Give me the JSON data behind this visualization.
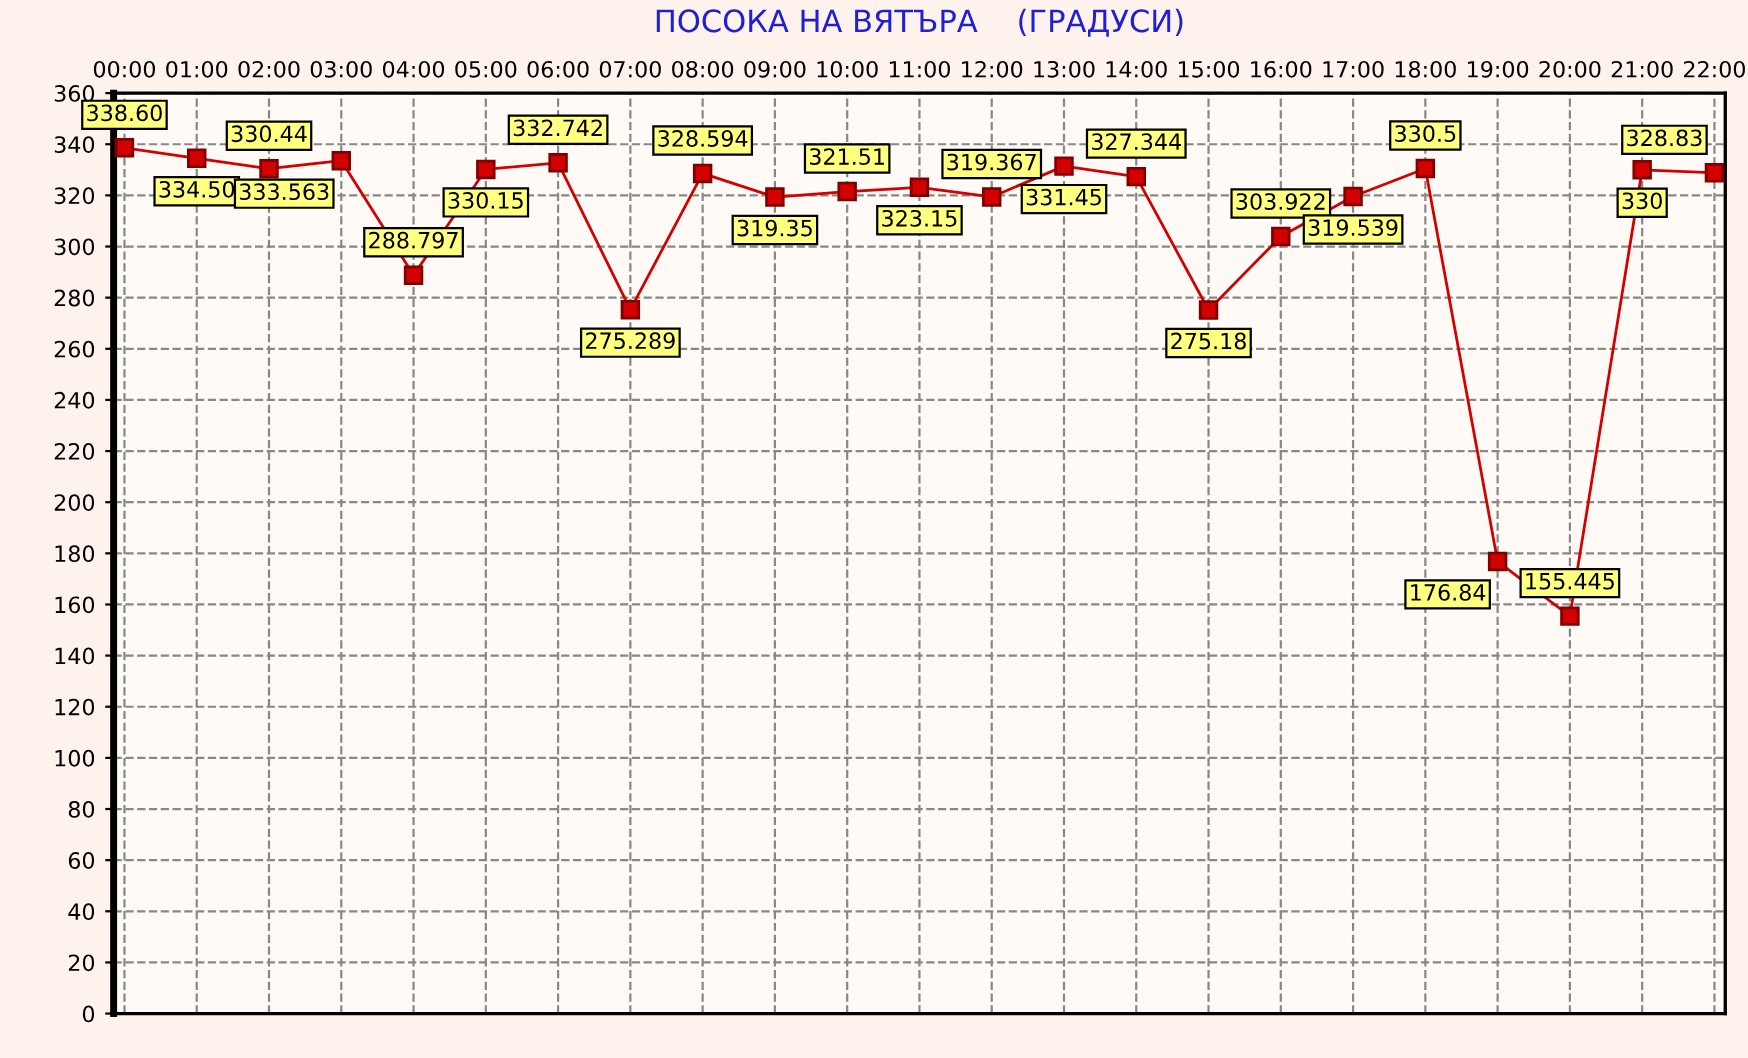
{
  "chart_data": {
    "type": "line",
    "title": "ПОСОКА НА ВЯТЪРА    (ГРАДУСИ)",
    "categories": [
      "00:00",
      "01:00",
      "02:00",
      "03:00",
      "04:00",
      "05:00",
      "06:00",
      "07:00",
      "08:00",
      "09:00",
      "10:00",
      "11:00",
      "12:00",
      "13:00",
      "14:00",
      "15:00",
      "16:00",
      "17:00",
      "18:00",
      "19:00",
      "20:00",
      "21:00",
      "22:00"
    ],
    "series": [
      {
        "color": "#d40000",
        "values": [
          338.6,
          334.5,
          330.44,
          333.563,
          288.797,
          330.15,
          332.742,
          275.289,
          328.594,
          319.35,
          321.51,
          323.15,
          319.367,
          331.45,
          327.344,
          275.18,
          303.922,
          319.539,
          330.5,
          176.84,
          155.445,
          330,
          328.83
        ],
        "value_labels": [
          "338.60",
          "334.50",
          "330.44",
          "333.563",
          "288.797",
          "330.15",
          "332.742",
          "275.289",
          "328.594",
          "319.35",
          "321.51",
          "323.15",
          "319.367",
          "331.45",
          "327.344",
          "275.18",
          "303.922",
          "319.539",
          "330.5",
          "176.84",
          "155.445",
          "330",
          "328.83"
        ]
      }
    ],
    "ylim": [
      0,
      360
    ],
    "yticks": [
      0,
      20,
      40,
      60,
      80,
      100,
      120,
      140,
      160,
      180,
      200,
      220,
      240,
      260,
      280,
      300,
      320,
      340,
      360
    ],
    "grid": true,
    "marker": "square",
    "line_style": "solid",
    "legend": false
  }
}
